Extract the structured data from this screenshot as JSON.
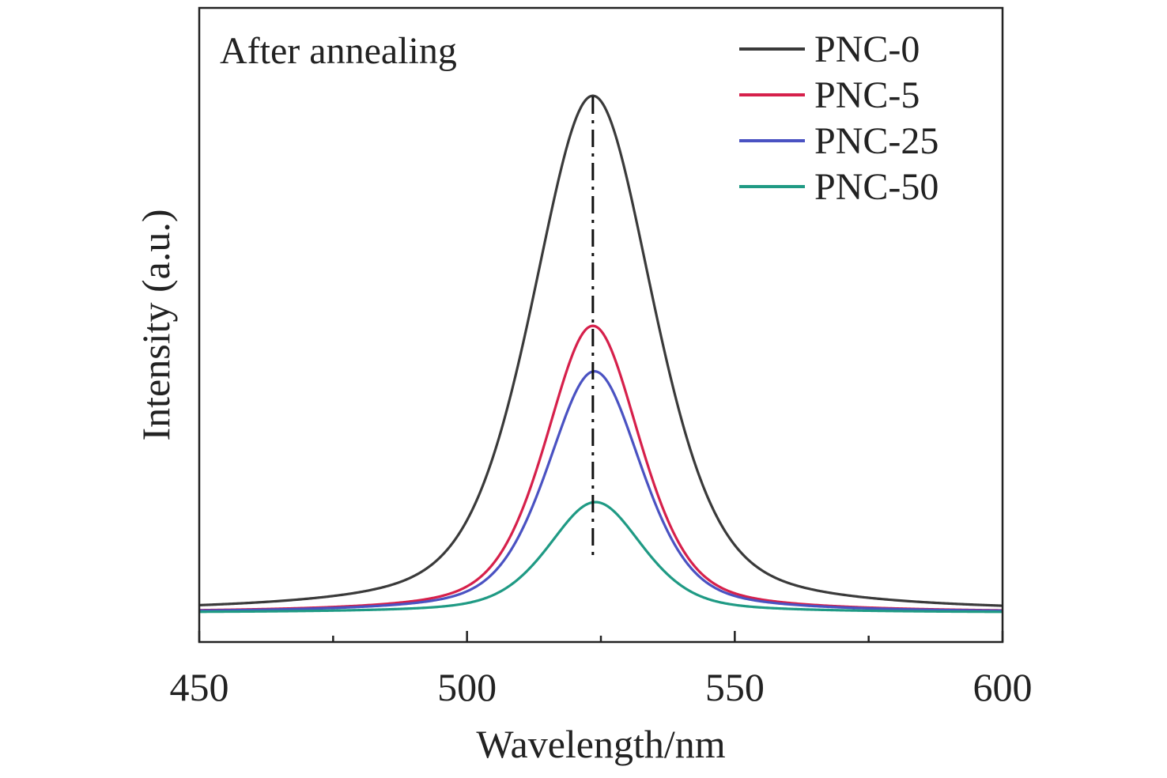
{
  "chart_data": {
    "type": "line",
    "annotation": "After annealing",
    "xlabel": "Wavelength/nm",
    "ylabel": "Intensity (a.u.)",
    "xlim": [
      450,
      600
    ],
    "ylim": [
      0,
      1.17
    ],
    "x_ticks": [
      450,
      500,
      550,
      600
    ],
    "x_minor_ticks": [
      475,
      525,
      575
    ],
    "x_tick_labels": [
      "450",
      "500",
      "550",
      "600"
    ],
    "y_ticks_shown": false,
    "grid": false,
    "legend_position": "top-right",
    "reference_line": {
      "x": 523.5,
      "style": "dash-dot",
      "color": "#111111"
    },
    "series": [
      {
        "name": "PNC-0",
        "color": "#3a3a3a",
        "peak_x": 523.5,
        "peak_y": 1.0,
        "fwhm": 27,
        "baseline": 0
      },
      {
        "name": "PNC-5",
        "color": "#d6204b",
        "peak_x": 523.5,
        "peak_y": 0.555,
        "fwhm": 21,
        "baseline": 0
      },
      {
        "name": "PNC-25",
        "color": "#4a52c2",
        "peak_x": 523.8,
        "peak_y": 0.467,
        "fwhm": 21,
        "baseline": 0
      },
      {
        "name": "PNC-50",
        "color": "#1f9a84",
        "peak_x": 524.0,
        "peak_y": 0.214,
        "fwhm": 21,
        "baseline": 0
      }
    ]
  }
}
